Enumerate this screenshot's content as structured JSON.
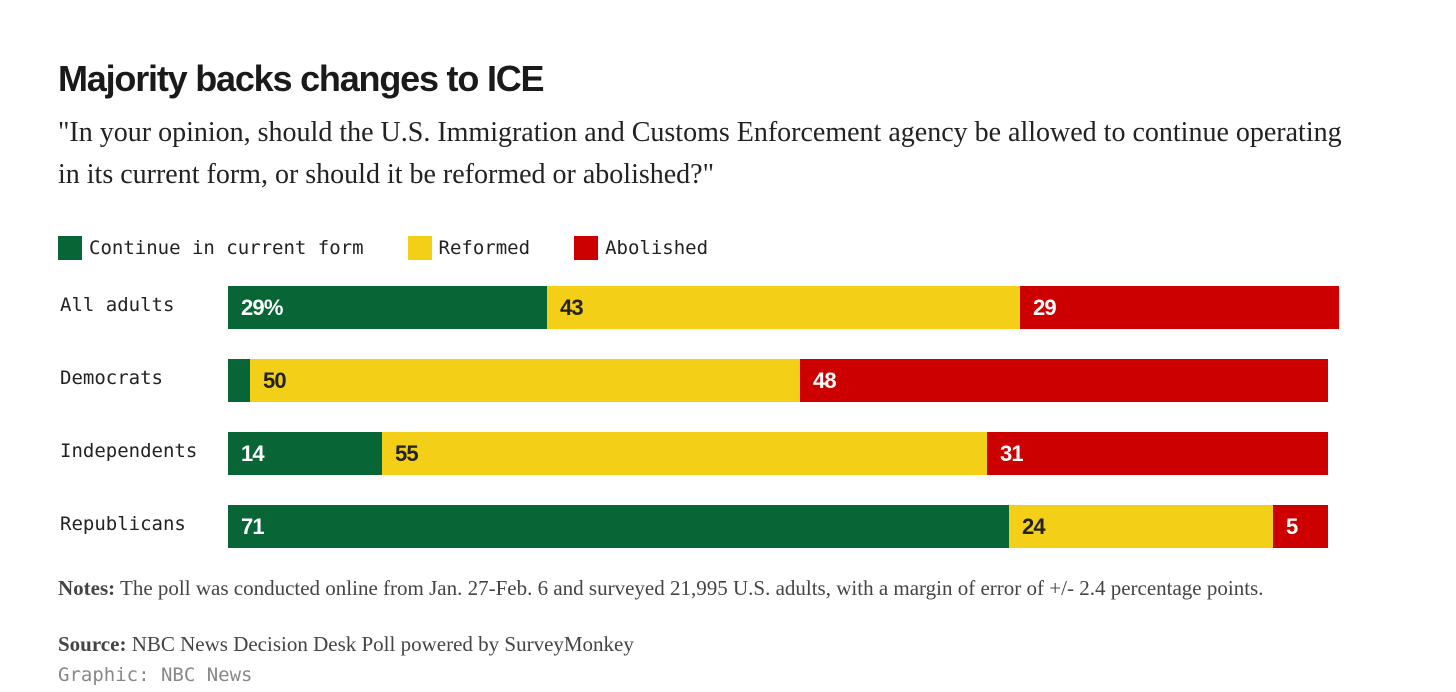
{
  "title": "Majority backs changes to ICE",
  "subtitle": "\"In your opinion, should the U.S. Immigration and Customs Enforcement agency be allowed to continue operating in its current form, or should it be reformed or abolished?\"",
  "legend": [
    {
      "label": "Continue in current form",
      "color": "#086536"
    },
    {
      "label": "Reformed",
      "color": "#f4cf17"
    },
    {
      "label": "Abolished",
      "color": "#cc0001"
    }
  ],
  "chart_data": {
    "type": "bar",
    "orientation": "horizontal",
    "stacked": true,
    "categories": [
      "All adults",
      "Democrats",
      "Independents",
      "Republicans"
    ],
    "series": [
      {
        "name": "Continue in current form",
        "values": [
          29,
          2,
          14,
          71
        ],
        "labels": [
          "29%",
          "",
          "14",
          "71"
        ],
        "color": "#086536",
        "label_color": "#ffffff"
      },
      {
        "name": "Reformed",
        "values": [
          43,
          50,
          55,
          24
        ],
        "labels": [
          "43",
          "50",
          "55",
          "24"
        ],
        "color": "#f4cf17",
        "label_color": "#222222"
      },
      {
        "name": "Abolished",
        "values": [
          29,
          48,
          31,
          5
        ],
        "labels": [
          "29",
          "48",
          "31",
          "5"
        ],
        "color": "#cc0001",
        "label_color": "#ffffff"
      }
    ],
    "legend_position": "top-left"
  },
  "notes": {
    "label": "Notes:",
    "text": " The poll was conducted online from Jan. 27-Feb. 6 and surveyed 21,995 U.S. adults, with a margin of error of +/- 2.4 percentage points."
  },
  "source": {
    "label": "Source:",
    "text": " NBC News Decision Desk Poll powered by SurveyMonkey"
  },
  "credit": "Graphic: NBC News"
}
